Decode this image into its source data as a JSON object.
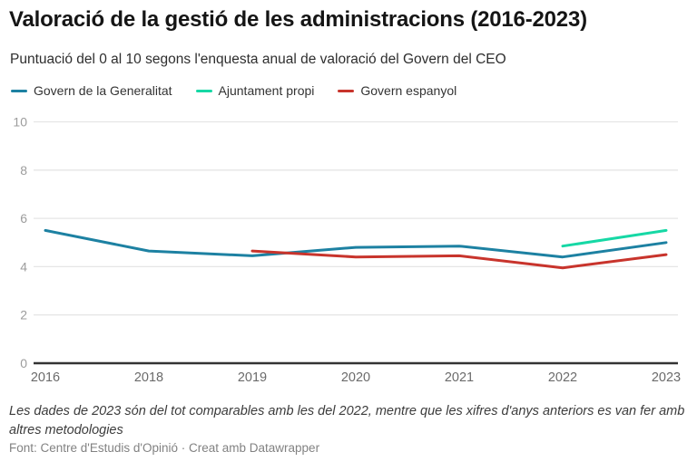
{
  "header": {
    "title": "Valoració de la gestió de les administracions (2016-2023)",
    "subtitle": "Puntuació del 0 al 10 segons l'enquesta anual de valoració del Govern del CEO"
  },
  "chart_data": {
    "type": "line",
    "categories": [
      "2016",
      "2018",
      "2019",
      "2020",
      "2021",
      "2022",
      "2023"
    ],
    "series": [
      {
        "name": "Govern de la Generalitat",
        "color": "#1d81a2",
        "values": [
          5.5,
          4.65,
          4.45,
          4.8,
          4.85,
          4.4,
          5.0
        ]
      },
      {
        "name": "Ajuntament propi",
        "color": "#16d8a5",
        "values": [
          null,
          null,
          null,
          null,
          null,
          4.85,
          5.5
        ]
      },
      {
        "name": "Govern espanyol",
        "color": "#c8342c",
        "values": [
          null,
          null,
          4.65,
          4.4,
          4.45,
          3.95,
          4.5
        ]
      }
    ],
    "title": "Valoració de la gestió de les administracions (2016-2023)",
    "xlabel": "",
    "ylabel": "",
    "ylim": [
      0,
      10
    ],
    "yticks": [
      0,
      2,
      4,
      6,
      8,
      10
    ],
    "grid": true,
    "legend_position": "top",
    "colors": {
      "gridline": "#e6e6e6",
      "baseline": "#333333",
      "ytick_label": "#9c9c9c",
      "xtick_label": "#6b6b6b"
    }
  },
  "footer": {
    "note": "Les dades de 2023 són del tot comparables amb les del 2022, mentre que les xifres d'anys anteriors es van fer amb altres metodologies",
    "source": "Font: Centre d'Estudis d'Opinió · Creat amb Datawrapper"
  }
}
